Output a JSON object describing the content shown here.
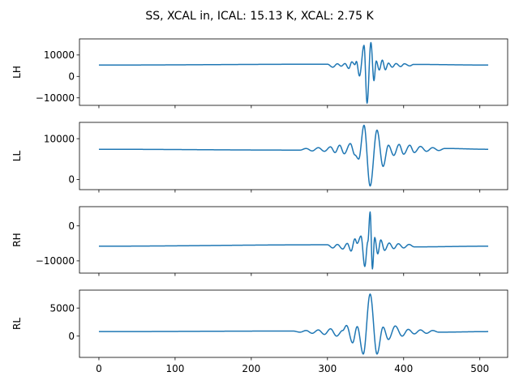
{
  "chart_data": {
    "type": "line",
    "title": "SS, XCAL in, ICAL: 15.13 K, XCAL: 2.75 K",
    "x_range": [
      0,
      511
    ],
    "xlim": [
      -25.5,
      536.5
    ],
    "x_ticks": [
      0,
      100,
      200,
      300,
      400,
      500
    ],
    "x_tick_labels": [
      "0",
      "100",
      "200",
      "300",
      "400",
      "500"
    ],
    "line_color": "#1f77b4",
    "grid": false,
    "panels": [
      {
        "ylabel": "LH",
        "ylim": [
          -13500,
          17500
        ],
        "y_ticks": [
          10000,
          0,
          -10000
        ],
        "y_tick_labels": [
          "10000",
          "0",
          "−10000"
        ],
        "baseline": 5300,
        "features": [
          {
            "x": 300,
            "v": 5700
          },
          {
            "x": 307,
            "v": 4300
          },
          {
            "x": 313,
            "v": 5900
          },
          {
            "x": 318,
            "v": 4800
          },
          {
            "x": 323,
            "v": 6000
          },
          {
            "x": 328,
            "v": 3700
          },
          {
            "x": 332,
            "v": 6800
          },
          {
            "x": 336,
            "v": 5500
          },
          {
            "x": 338,
            "v": 7000
          },
          {
            "x": 342,
            "v": 200
          },
          {
            "x": 348,
            "v": 14500
          },
          {
            "x": 352,
            "v": -12500
          },
          {
            "x": 357,
            "v": 15800
          },
          {
            "x": 361,
            "v": -2000
          },
          {
            "x": 364,
            "v": 7200
          },
          {
            "x": 368,
            "v": 3000
          },
          {
            "x": 372,
            "v": 7600
          },
          {
            "x": 376,
            "v": 3100
          },
          {
            "x": 380,
            "v": 6200
          },
          {
            "x": 385,
            "v": 4300
          },
          {
            "x": 390,
            "v": 6000
          },
          {
            "x": 396,
            "v": 4600
          },
          {
            "x": 401,
            "v": 5900
          },
          {
            "x": 408,
            "v": 4900
          },
          {
            "x": 413,
            "v": 5600
          }
        ]
      },
      {
        "ylabel": "LL",
        "ylim": [
          -2500,
          14000
        ],
        "y_ticks": [
          10000,
          0
        ],
        "y_tick_labels": [
          "10000",
          "0"
        ],
        "baseline": 7400,
        "features": [
          {
            "x": 264,
            "v": 7200
          },
          {
            "x": 272,
            "v": 7600
          },
          {
            "x": 280,
            "v": 7000
          },
          {
            "x": 288,
            "v": 7800
          },
          {
            "x": 296,
            "v": 6900
          },
          {
            "x": 304,
            "v": 8000
          },
          {
            "x": 310,
            "v": 6600
          },
          {
            "x": 316,
            "v": 8400
          },
          {
            "x": 322,
            "v": 6300
          },
          {
            "x": 330,
            "v": 8800
          },
          {
            "x": 336,
            "v": 6000
          },
          {
            "x": 341,
            "v": 5000
          },
          {
            "x": 348,
            "v": 13300
          },
          {
            "x": 356,
            "v": -1600
          },
          {
            "x": 365,
            "v": 12100
          },
          {
            "x": 373,
            "v": 3200
          },
          {
            "x": 380,
            "v": 8400
          },
          {
            "x": 387,
            "v": 5900
          },
          {
            "x": 394,
            "v": 8600
          },
          {
            "x": 400,
            "v": 6200
          },
          {
            "x": 408,
            "v": 8400
          },
          {
            "x": 414,
            "v": 6600
          },
          {
            "x": 422,
            "v": 8100
          },
          {
            "x": 430,
            "v": 6900
          },
          {
            "x": 438,
            "v": 7800
          },
          {
            "x": 446,
            "v": 7100
          },
          {
            "x": 454,
            "v": 7600
          }
        ]
      },
      {
        "ylabel": "RH",
        "ylim": [
          -13500,
          5500
        ],
        "y_ticks": [
          0,
          -10000
        ],
        "y_tick_labels": [
          "0",
          "−10000"
        ],
        "baseline": -5800,
        "features": [
          {
            "x": 300,
            "v": -5400
          },
          {
            "x": 307,
            "v": -6300
          },
          {
            "x": 313,
            "v": -5300
          },
          {
            "x": 320,
            "v": -6600
          },
          {
            "x": 326,
            "v": -5000
          },
          {
            "x": 331,
            "v": -7200
          },
          {
            "x": 336,
            "v": -3700
          },
          {
            "x": 339,
            "v": -5000
          },
          {
            "x": 344,
            "v": -2900
          },
          {
            "x": 349,
            "v": -11600
          },
          {
            "x": 353,
            "v": -4500
          },
          {
            "x": 356,
            "v": 4000
          },
          {
            "x": 359,
            "v": -12300
          },
          {
            "x": 362,
            "v": -3300
          },
          {
            "x": 366,
            "v": -8000
          },
          {
            "x": 370,
            "v": -4000
          },
          {
            "x": 375,
            "v": -7000
          },
          {
            "x": 381,
            "v": -4900
          },
          {
            "x": 387,
            "v": -6500
          },
          {
            "x": 393,
            "v": -5100
          },
          {
            "x": 400,
            "v": -6300
          },
          {
            "x": 407,
            "v": -5300
          },
          {
            "x": 414,
            "v": -6000
          }
        ]
      },
      {
        "ylabel": "RL",
        "ylim": [
          -3800,
          8200
        ],
        "y_ticks": [
          5000,
          0
        ],
        "y_tick_labels": [
          "5000",
          "0"
        ],
        "baseline": 800,
        "features": [
          {
            "x": 255,
            "v": 900
          },
          {
            "x": 264,
            "v": 700
          },
          {
            "x": 272,
            "v": 1000
          },
          {
            "x": 280,
            "v": 500
          },
          {
            "x": 288,
            "v": 1100
          },
          {
            "x": 296,
            "v": 300
          },
          {
            "x": 304,
            "v": 1300
          },
          {
            "x": 312,
            "v": 0
          },
          {
            "x": 320,
            "v": 1000
          },
          {
            "x": 325,
            "v": 1900
          },
          {
            "x": 333,
            "v": -1200
          },
          {
            "x": 339,
            "v": 1700
          },
          {
            "x": 347,
            "v": -3200
          },
          {
            "x": 356,
            "v": 7500
          },
          {
            "x": 365,
            "v": -3200
          },
          {
            "x": 373,
            "v": 1600
          },
          {
            "x": 380,
            "v": -600
          },
          {
            "x": 389,
            "v": 1800
          },
          {
            "x": 398,
            "v": 0
          },
          {
            "x": 406,
            "v": 1200
          },
          {
            "x": 414,
            "v": 400
          },
          {
            "x": 422,
            "v": 1100
          },
          {
            "x": 430,
            "v": 500
          },
          {
            "x": 438,
            "v": 1000
          },
          {
            "x": 446,
            "v": 700
          }
        ]
      }
    ]
  }
}
